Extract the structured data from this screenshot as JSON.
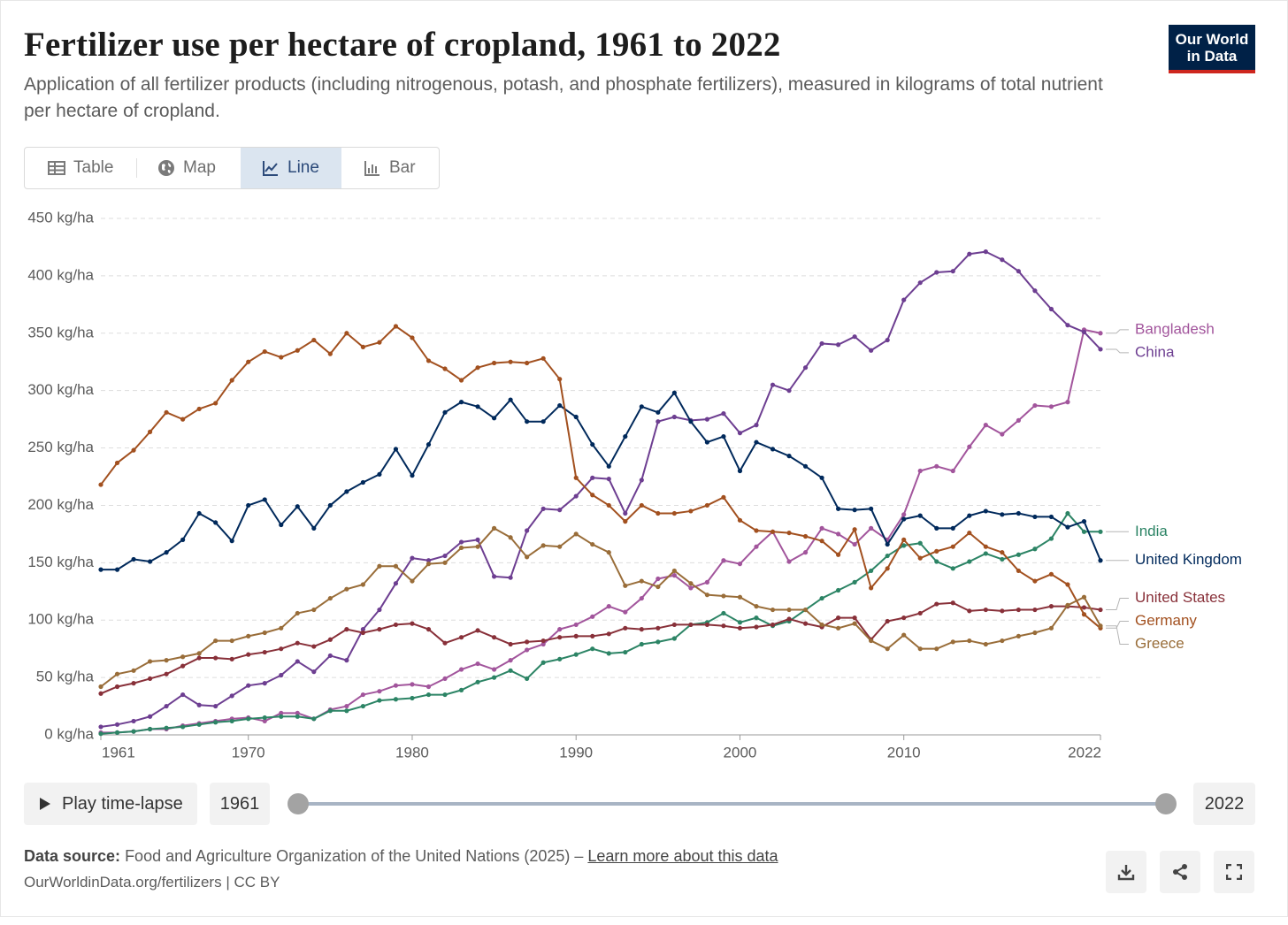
{
  "header": {
    "logo": [
      "Our World",
      "in Data"
    ]
  },
  "tabs": [
    "Table",
    "Map",
    "Line",
    "Bar"
  ],
  "chart_data": {
    "type": "line",
    "title": "Fertilizer use per hectare of cropland, 1961 to 2022",
    "subtitle": "Application of all fertilizer products (including nitrogenous, potash, and phosphate fertilizers), measured in kilograms of total nutrient per hectare of cropland.",
    "x": [
      1961,
      1962,
      1963,
      1964,
      1965,
      1966,
      1967,
      1968,
      1969,
      1970,
      1971,
      1972,
      1973,
      1974,
      1975,
      1976,
      1977,
      1978,
      1979,
      1980,
      1981,
      1982,
      1983,
      1984,
      1985,
      1986,
      1987,
      1988,
      1989,
      1990,
      1991,
      1992,
      1993,
      1994,
      1995,
      1996,
      1997,
      1998,
      1999,
      2000,
      2001,
      2002,
      2003,
      2004,
      2005,
      2006,
      2007,
      2008,
      2009,
      2010,
      2011,
      2012,
      2013,
      2014,
      2015,
      2016,
      2017,
      2018,
      2019,
      2020,
      2021,
      2022
    ],
    "xlim": [
      1961,
      2022
    ],
    "xticks": [
      1961,
      1970,
      1980,
      1990,
      2000,
      2010,
      2022
    ],
    "ylim": [
      0,
      450
    ],
    "yticks": [
      {
        "value": 0,
        "label": "0 kg/ha"
      },
      {
        "value": 50,
        "label": "50 kg/ha"
      },
      {
        "value": 100,
        "label": "100 kg/ha"
      },
      {
        "value": 150,
        "label": "150 kg/ha"
      },
      {
        "value": 200,
        "label": "200 kg/ha"
      },
      {
        "value": 250,
        "label": "250 kg/ha"
      },
      {
        "value": 300,
        "label": "300 kg/ha"
      },
      {
        "value": 350,
        "label": "350 kg/ha"
      },
      {
        "value": 400,
        "label": "400 kg/ha"
      },
      {
        "value": 450,
        "label": "450 kg/ha"
      }
    ],
    "grid": true,
    "series": [
      {
        "name": "Bangladesh",
        "color": "#a2559c",
        "values": [
          2,
          2,
          3,
          5,
          5,
          8,
          10,
          12,
          14,
          15,
          12,
          19,
          19,
          14,
          22,
          25,
          35,
          38,
          43,
          44,
          42,
          49,
          57,
          62,
          57,
          65,
          74,
          79,
          92,
          96,
          103,
          112,
          107,
          119,
          136,
          139,
          128,
          133,
          152,
          149,
          164,
          177,
          151,
          159,
          180,
          175,
          166,
          180,
          170,
          192,
          230,
          234,
          230,
          251,
          270,
          262,
          274,
          287,
          286,
          290,
          353,
          350
        ]
      },
      {
        "name": "China",
        "color": "#6d3e91",
        "values": [
          7,
          9,
          12,
          16,
          25,
          35,
          26,
          25,
          34,
          43,
          45,
          52,
          64,
          55,
          69,
          65,
          92,
          109,
          132,
          154,
          152,
          156,
          168,
          170,
          138,
          137,
          178,
          197,
          196,
          208,
          224,
          223,
          193,
          222,
          273,
          277,
          274,
          275,
          280,
          263,
          270,
          305,
          300,
          320,
          341,
          340,
          347,
          335,
          344,
          379,
          394,
          403,
          404,
          419,
          421,
          414,
          404,
          387,
          371,
          357,
          351,
          336
        ]
      },
      {
        "name": "India",
        "color": "#2c8465",
        "values": [
          1,
          2,
          3,
          5,
          6,
          7,
          9,
          11,
          12,
          14,
          15,
          16,
          16,
          14,
          21,
          21,
          25,
          30,
          31,
          32,
          35,
          35,
          39,
          46,
          50,
          56,
          49,
          63,
          66,
          70,
          75,
          71,
          72,
          79,
          81,
          84,
          96,
          98,
          106,
          98,
          102,
          95,
          99,
          109,
          119,
          126,
          133,
          143,
          156,
          165,
          167,
          151,
          145,
          151,
          158,
          153,
          157,
          162,
          171,
          193,
          177,
          177
        ]
      },
      {
        "name": "United Kingdom",
        "color": "#00295b",
        "values": [
          144,
          144,
          153,
          151,
          159,
          170,
          193,
          185,
          169,
          200,
          205,
          183,
          199,
          180,
          200,
          212,
          220,
          227,
          249,
          226,
          253,
          281,
          290,
          286,
          276,
          292,
          273,
          273,
          287,
          277,
          253,
          234,
          260,
          286,
          281,
          298,
          273,
          255,
          260,
          230,
          255,
          249,
          243,
          234,
          224,
          197,
          196,
          197,
          166,
          188,
          191,
          180,
          180,
          191,
          195,
          192,
          193,
          190,
          190,
          181,
          186,
          152
        ]
      },
      {
        "name": "United States",
        "color": "#883039",
        "values": [
          36,
          42,
          45,
          49,
          53,
          60,
          67,
          67,
          66,
          70,
          72,
          75,
          80,
          77,
          83,
          92,
          89,
          92,
          96,
          97,
          92,
          80,
          85,
          91,
          85,
          79,
          81,
          82,
          85,
          86,
          86,
          88,
          93,
          92,
          93,
          96,
          96,
          96,
          95,
          93,
          94,
          96,
          101,
          97,
          94,
          102,
          102,
          83,
          99,
          102,
          106,
          114,
          115,
          108,
          109,
          108,
          109,
          109,
          112,
          112,
          111,
          109
        ]
      },
      {
        "name": "Germany",
        "color": "#a2501f",
        "values": [
          218,
          237,
          248,
          264,
          281,
          275,
          284,
          289,
          309,
          325,
          334,
          329,
          335,
          344,
          332,
          350,
          338,
          342,
          356,
          346,
          326,
          319,
          309,
          320,
          324,
          325,
          324,
          328,
          310,
          224,
          209,
          200,
          186,
          200,
          193,
          193,
          195,
          200,
          207,
          187,
          178,
          177,
          176,
          173,
          169,
          157,
          179,
          128,
          145,
          170,
          154,
          160,
          164,
          176,
          164,
          159,
          143,
          134,
          140,
          131,
          105,
          93
        ]
      },
      {
        "name": "Greece",
        "color": "#996d39",
        "values": [
          42,
          53,
          56,
          64,
          65,
          68,
          71,
          82,
          82,
          86,
          89,
          93,
          106,
          109,
          119,
          127,
          131,
          147,
          147,
          134,
          149,
          150,
          163,
          164,
          180,
          172,
          155,
          165,
          164,
          175,
          166,
          159,
          130,
          134,
          129,
          143,
          132,
          122,
          121,
          120,
          112,
          109,
          109,
          109,
          96,
          93,
          97,
          82,
          75,
          87,
          75,
          75,
          81,
          82,
          79,
          82,
          86,
          89,
          93,
          113,
          120,
          95
        ]
      }
    ]
  },
  "timeline": {
    "play": "Play time-lapse",
    "start": "1961",
    "end": "2022"
  },
  "footer": {
    "source_label": "Data source:",
    "source": "Food and Agriculture Organization of the United Nations (2025) –",
    "link": "Learn more about this data",
    "url": "OurWorldinData.org/fertilizers | CC BY"
  }
}
